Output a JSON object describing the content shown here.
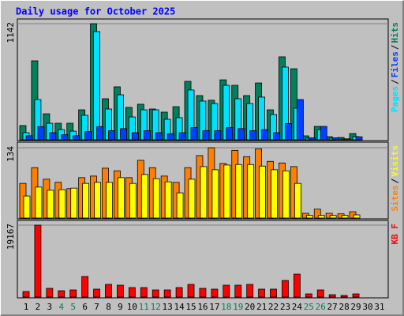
{
  "chart_data": [
    {
      "type": "bar",
      "title": "Daily usage for October 2025",
      "ylim": [
        0,
        1142
      ],
      "yticks": [
        1142
      ],
      "grid": true,
      "legend_separator": "/",
      "series": [
        {
          "name": "Hits",
          "color": "#00805c",
          "values": [
            140,
            777,
            256,
            163,
            163,
            295,
            1142,
            404,
            521,
            319,
            350,
            303,
            272,
            326,
            575,
            435,
            389,
            590,
            536,
            435,
            559,
            295,
            816,
            699,
            39,
            132,
            31,
            23,
            62,
            0,
            0
          ]
        },
        {
          "name": "Pages",
          "color": "#00e0ff",
          "values": [
            70,
            396,
            163,
            101,
            85,
            241,
            1064,
            303,
            443,
            225,
            295,
            295,
            202,
            218,
            490,
            381,
            357,
            536,
            404,
            357,
            420,
            249,
            715,
            311,
            16,
            100,
            16,
            8,
            31,
            0,
            0
          ]
        },
        {
          "name": "Files",
          "color": "#0040ff",
          "values": [
            40,
            130,
            70,
            50,
            40,
            80,
            130,
            90,
            110,
            70,
            90,
            70,
            60,
            70,
            120,
            90,
            90,
            120,
            110,
            90,
            100,
            70,
            160,
            396,
            20,
            132,
            20,
            10,
            30,
            0,
            0
          ]
        }
      ],
      "legend_order": [
        1,
        2,
        0
      ]
    },
    {
      "type": "bar",
      "ylim": [
        0,
        134
      ],
      "yticks": [
        134
      ],
      "grid": true,
      "legend_separator": "/",
      "series": [
        {
          "name": "Sites",
          "color": "#ff8000",
          "values": [
            66,
            96,
            74,
            68,
            56,
            77,
            80,
            95,
            90,
            77,
            110,
            96,
            80,
            68,
            96,
            119,
            134,
            104,
            129,
            117,
            132,
            108,
            105,
            98,
            9,
            17,
            9,
            8,
            12,
            0,
            0
          ]
        },
        {
          "name": "Visits",
          "color": "#ffff00",
          "values": [
            42,
            59,
            53,
            54,
            57,
            66,
            68,
            68,
            77,
            66,
            83,
            75,
            69,
            48,
            74,
            98,
            92,
            101,
            102,
            102,
            99,
            92,
            90,
            66,
            5,
            5,
            5,
            5,
            6,
            0,
            0
          ]
        }
      ],
      "legend_order": [
        0,
        1
      ]
    },
    {
      "type": "bar",
      "ylim": [
        0,
        19167
      ],
      "yticks": [
        19167
      ],
      "grid": true,
      "categories": [
        "1",
        "2",
        "3",
        "4",
        "5",
        "6",
        "7",
        "8",
        "9",
        "10",
        "11",
        "12",
        "13",
        "14",
        "15",
        "16",
        "17",
        "18",
        "19",
        "20",
        "21",
        "22",
        "23",
        "24",
        "25",
        "26",
        "27",
        "28",
        "29",
        "30",
        "31"
      ],
      "category_colors": [
        "#000000",
        "#000000",
        "#000000",
        "#00805c",
        "#00805c",
        "#000000",
        "#000000",
        "#000000",
        "#000000",
        "#000000",
        "#00805c",
        "#00805c",
        "#000000",
        "#000000",
        "#000000",
        "#000000",
        "#000000",
        "#00805c",
        "#00805c",
        "#000000",
        "#000000",
        "#000000",
        "#000000",
        "#000000",
        "#00805c",
        "#00805c",
        "#000000",
        "#000000",
        "#000000",
        "#000000",
        "#000000"
      ],
      "series": [
        {
          "name": "KB F",
          "color": "#ff0000",
          "values": [
            1474,
            19167,
            2317,
            1685,
            1895,
            5476,
            2106,
            3370,
            3159,
            2527,
            2527,
            1895,
            1895,
            2527,
            3370,
            2317,
            2106,
            3159,
            3159,
            3370,
            2106,
            2106,
            4423,
            6107,
            842,
            1895,
            632,
            421,
            842,
            0,
            0
          ]
        }
      ],
      "legend_order": [
        0
      ]
    }
  ]
}
